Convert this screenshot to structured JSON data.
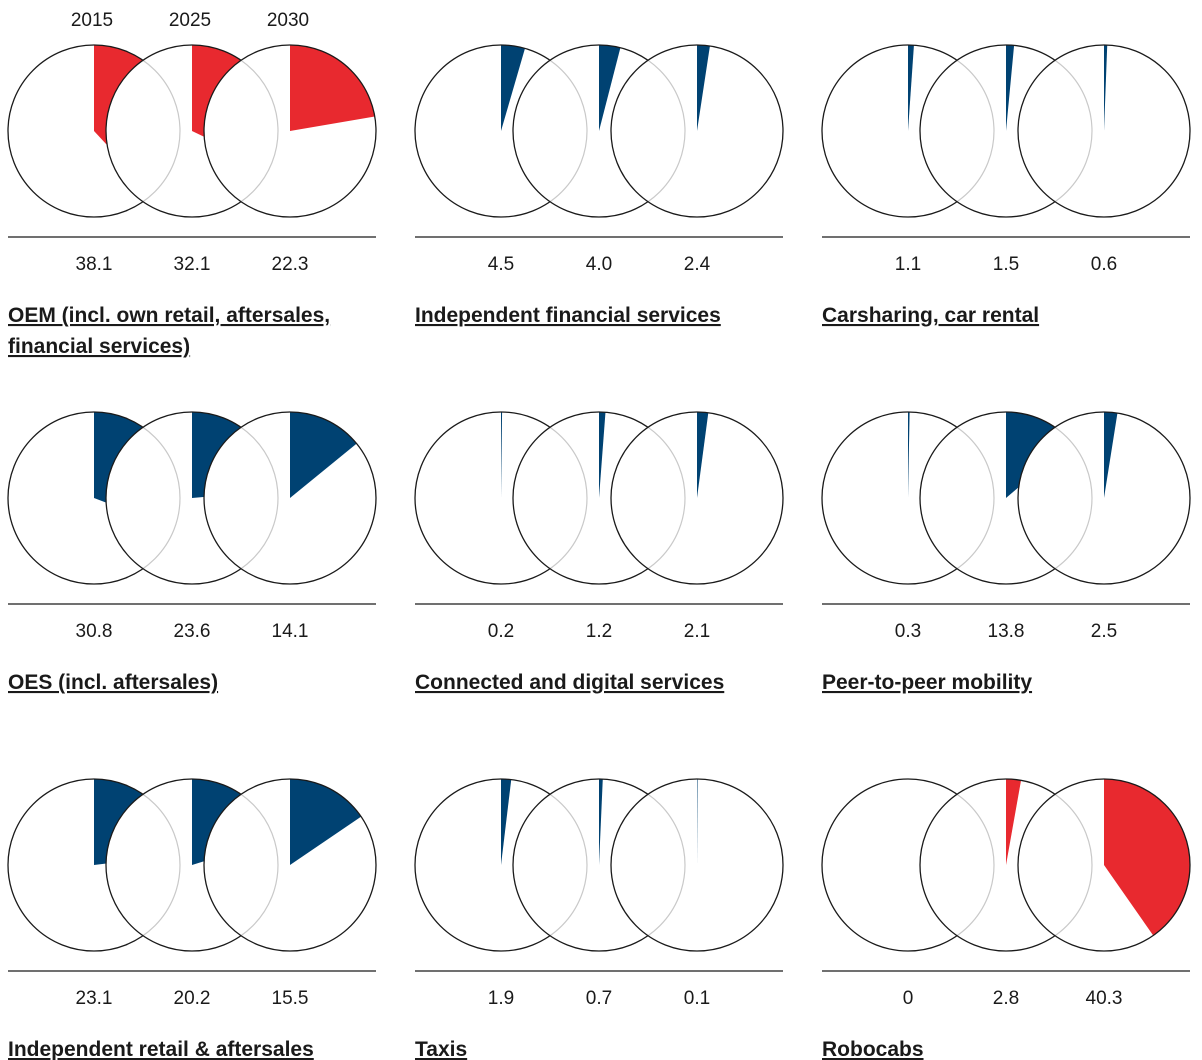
{
  "chart_data": {
    "type": "pie",
    "years": [
      "2015",
      "2025",
      "2030"
    ],
    "unit_note": "",
    "colors": {
      "red": "#e8292f",
      "red_light": "#f4a5a7",
      "blue": "#004272",
      "blue_light": "#9db5c9",
      "blue_lighter": "#c9d8e4"
    },
    "panels": [
      {
        "title_lines": [
          "OEM (incl. own retail, aftersales,",
          "financial services)"
        ],
        "color": "red",
        "values": [
          38.1,
          32.1,
          22.3
        ],
        "labels": [
          "38.1",
          "32.1",
          "22.3"
        ]
      },
      {
        "title_lines": [
          "Independent financial services"
        ],
        "color": "blue",
        "values": [
          4.5,
          4.0,
          2.4
        ],
        "labels": [
          "4.5",
          "4.0",
          "2.4"
        ]
      },
      {
        "title_lines": [
          "Carsharing, car rental"
        ],
        "color": "blue",
        "values": [
          1.1,
          1.5,
          0.6
        ],
        "labels": [
          "1.1",
          "1.5",
          "0.6"
        ]
      },
      {
        "title_lines": [
          "OES (incl. aftersales)"
        ],
        "color": "blue",
        "values": [
          30.8,
          23.6,
          14.1
        ],
        "labels": [
          "30.8",
          "23.6",
          "14.1"
        ]
      },
      {
        "title_lines": [
          "Connected and digital services"
        ],
        "color": "blue",
        "values": [
          0.2,
          1.2,
          2.1
        ],
        "labels": [
          "0.2",
          "1.2",
          "2.1"
        ]
      },
      {
        "title_lines": [
          "Peer-to-peer mobility"
        ],
        "color": "blue",
        "values": [
          0.3,
          13.8,
          2.5
        ],
        "labels": [
          "0.3",
          "13.8",
          "2.5"
        ]
      },
      {
        "title_lines": [
          "Independent retail & aftersales"
        ],
        "color": "blue",
        "values": [
          23.1,
          20.2,
          15.5
        ],
        "labels": [
          "23.1",
          "20.2",
          "15.5"
        ]
      },
      {
        "title_lines": [
          "Taxis"
        ],
        "color": "blue",
        "values": [
          1.9,
          0.7,
          0.1
        ],
        "labels": [
          "1.9",
          "0.7",
          "0.1"
        ]
      },
      {
        "title_lines": [
          "Robocabs"
        ],
        "color": "red",
        "values": [
          0,
          2.8,
          40.3
        ],
        "labels": [
          "0",
          "2.8",
          "40.3"
        ]
      }
    ]
  }
}
